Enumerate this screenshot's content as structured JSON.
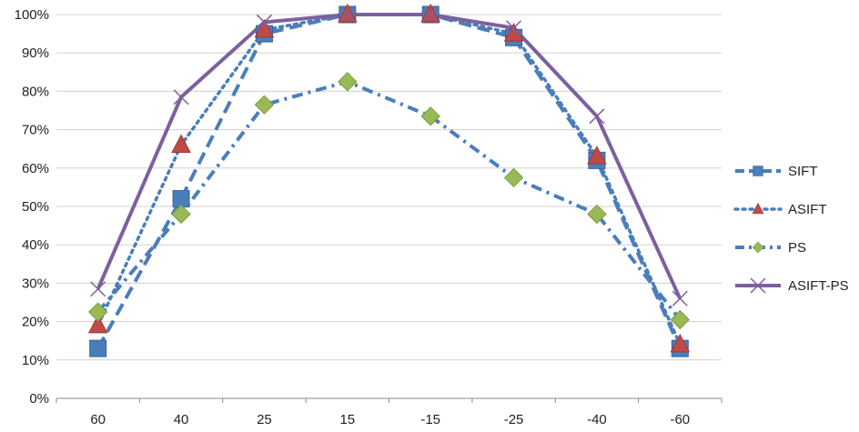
{
  "chart_data": {
    "type": "line",
    "title": "",
    "xlabel": "",
    "ylabel": "",
    "categories": [
      "60",
      "40",
      "25",
      "15",
      "-15",
      "-25",
      "-40",
      "-60"
    ],
    "ylim": [
      0,
      100
    ],
    "yticks": [
      0,
      10,
      20,
      30,
      40,
      50,
      60,
      70,
      80,
      90,
      100
    ],
    "ytick_format": "percent",
    "grid": "horizontal",
    "legend_position": "right",
    "series": [
      {
        "name": "SIFT",
        "values": [
          13,
          52,
          95,
          100,
          100,
          94,
          62,
          13
        ],
        "color": "#4a7ebb",
        "line_style": "long-dash",
        "marker": "square"
      },
      {
        "name": "ASIFT",
        "values": [
          19,
          66,
          96,
          100,
          100,
          95,
          63,
          14
        ],
        "color": "#4a7ebb",
        "marker_color": "#be4b48",
        "line_style": "dotted",
        "marker": "triangle"
      },
      {
        "name": "PS",
        "values": [
          22.5,
          48,
          76.5,
          82.5,
          73.5,
          57.5,
          48,
          20.5
        ],
        "color": "#4a7ebb",
        "marker_color": "#98b954",
        "line_style": "dash-dot",
        "marker": "diamond"
      },
      {
        "name": "ASIFT-PS",
        "values": [
          28.5,
          78.5,
          98,
          100,
          100,
          96.5,
          73.5,
          26
        ],
        "color": "#7d5fa0",
        "line_style": "solid",
        "marker": "x"
      }
    ]
  }
}
